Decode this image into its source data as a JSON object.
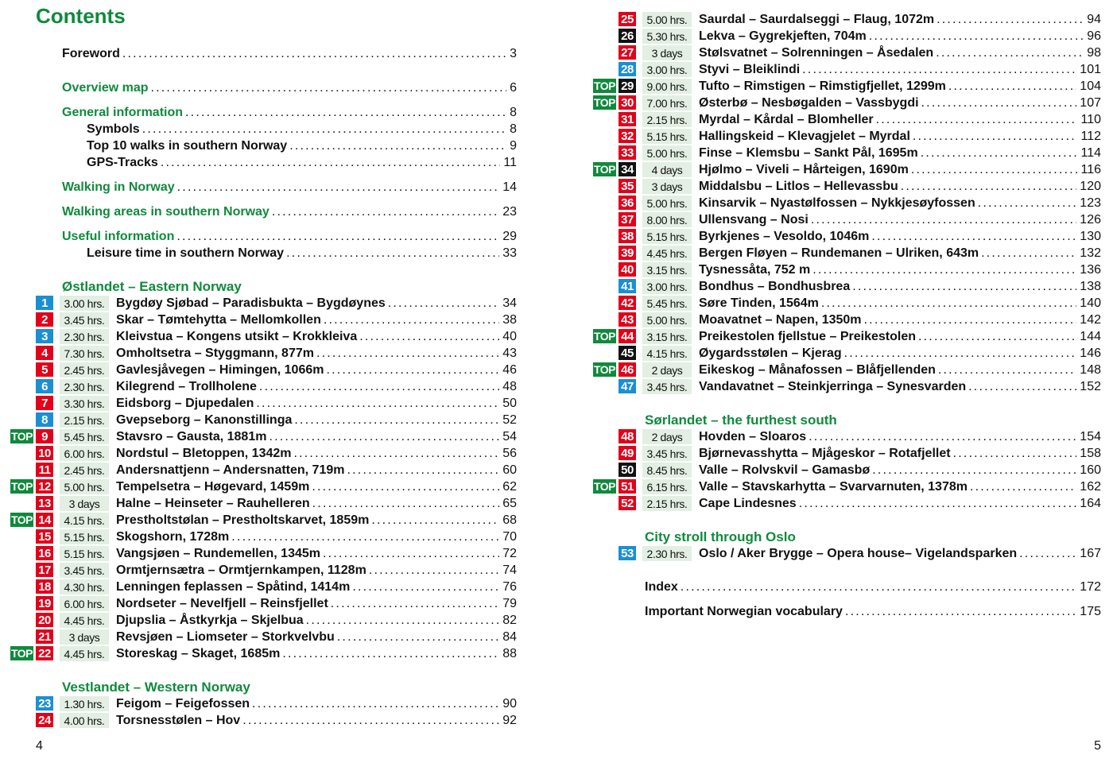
{
  "contents_title": "Contents",
  "colors": {
    "green": "#0f8a3c",
    "blue": "#1a8fd4",
    "red": "#e2001a",
    "black": "#111111",
    "time_bg": "#e2efe2"
  },
  "top_label": "TOP",
  "left_page": {
    "folio": "4",
    "items": [
      {
        "kind": "main",
        "color": "black",
        "title": "Foreword",
        "page": "3"
      },
      {
        "kind": "main",
        "color": "green",
        "title": "Overview map",
        "page": "6"
      },
      {
        "kind": "main",
        "color": "green",
        "title": "General information",
        "page": "8"
      },
      {
        "kind": "sub",
        "title": "Symbols",
        "page": "8"
      },
      {
        "kind": "sub",
        "title": "Top 10 walks in southern Norway",
        "page": "9"
      },
      {
        "kind": "sub",
        "title": "GPS-Tracks",
        "page": "11"
      },
      {
        "kind": "main",
        "color": "green",
        "title": "Walking in Norway",
        "page": "14"
      },
      {
        "kind": "main",
        "color": "green",
        "title": "Walking areas in southern Norway",
        "page": "23"
      },
      {
        "kind": "main",
        "color": "green",
        "title": "Useful information",
        "page": "29"
      },
      {
        "kind": "sub",
        "title": "Leisure time in southern Norway",
        "page": "33"
      },
      {
        "kind": "section",
        "title": "Østlandet – Eastern Norway"
      },
      {
        "kind": "entry",
        "num": "1",
        "badge": "blue",
        "time": "3.00 hrs.",
        "title": "Bygdøy Sjøbad – Paradisbukta – Bygdøynes",
        "page": "34"
      },
      {
        "kind": "entry",
        "num": "2",
        "badge": "red",
        "time": "3.45 hrs.",
        "title": "Skar – Tømtehytta – Mellomkollen",
        "page": "38"
      },
      {
        "kind": "entry",
        "num": "3",
        "badge": "blue",
        "time": "2.30 hrs.",
        "title": "Kleivstua – Kongens utsikt – Krokkleiva",
        "page": "40"
      },
      {
        "kind": "entry",
        "num": "4",
        "badge": "red",
        "time": "7.30 hrs.",
        "title": "Omholtsetra – Styggmann, 877m",
        "page": "43"
      },
      {
        "kind": "entry",
        "num": "5",
        "badge": "red",
        "time": "2.45 hrs.",
        "title": "Gavlesjåvegen – Himingen, 1066m",
        "page": "46"
      },
      {
        "kind": "entry",
        "num": "6",
        "badge": "blue",
        "time": "2.30 hrs.",
        "title": "Kilegrend – Trollholene",
        "page": "48"
      },
      {
        "kind": "entry",
        "num": "7",
        "badge": "red",
        "time": "3.30 hrs.",
        "title": "Eidsborg – Djupedalen",
        "page": "50"
      },
      {
        "kind": "entry",
        "num": "8",
        "badge": "blue",
        "time": "2.15 hrs.",
        "title": "Gvepseborg – Kanonstillinga",
        "page": "52"
      },
      {
        "kind": "entry",
        "num": "9",
        "badge": "red",
        "top": true,
        "time": "5.45 hrs.",
        "title": "Stavsro – Gausta, 1881m",
        "page": "54"
      },
      {
        "kind": "entry",
        "num": "10",
        "badge": "red",
        "time": "6.00 hrs.",
        "title": "Nordstul – Bletoppen, 1342m",
        "page": "56"
      },
      {
        "kind": "entry",
        "num": "11",
        "badge": "red",
        "time": "2.45 hrs.",
        "title": "Andersnattjenn – Andersnatten, 719m",
        "page": "60"
      },
      {
        "kind": "entry",
        "num": "12",
        "badge": "red",
        "top": true,
        "time": "5.00 hrs.",
        "title": "Tempelsetra – Høgevard, 1459m",
        "page": "62"
      },
      {
        "kind": "entry",
        "num": "13",
        "badge": "red",
        "time": "3 days",
        "title": "Halne – Heinseter – Rauhelleren",
        "page": "65"
      },
      {
        "kind": "entry",
        "num": "14",
        "badge": "red",
        "top": true,
        "time": "4.15 hrs.",
        "title": "Prestholtstølan – Prestholtskarvet, 1859m",
        "page": "68"
      },
      {
        "kind": "entry",
        "num": "15",
        "badge": "red",
        "time": "5.15 hrs.",
        "title": "Skogshorn, 1728m",
        "page": "70"
      },
      {
        "kind": "entry",
        "num": "16",
        "badge": "red",
        "time": "5.15 hrs.",
        "title": "Vangsjøen – Rundemellen, 1345m",
        "page": "72"
      },
      {
        "kind": "entry",
        "num": "17",
        "badge": "red",
        "time": "3.45 hrs.",
        "title": "Ormtjernsætra – Ormtjernkampen, 1128m",
        "page": "74"
      },
      {
        "kind": "entry",
        "num": "18",
        "badge": "red",
        "time": "4.30 hrs.",
        "title": "Lenningen feplassen – Spåtind, 1414m",
        "page": "76"
      },
      {
        "kind": "entry",
        "num": "19",
        "badge": "red",
        "time": "6.00 hrs.",
        "title": "Nordseter – Nevelfjell – Reinsfjellet",
        "page": "79"
      },
      {
        "kind": "entry",
        "num": "20",
        "badge": "red",
        "time": "4.45 hrs.",
        "title": "Djupslia – Åstkyrkja – Skjelbua",
        "page": "82"
      },
      {
        "kind": "entry",
        "num": "21",
        "badge": "red",
        "time": "3 days",
        "title": "Revsjøen – Liomseter – Storkvelvbu",
        "page": "84"
      },
      {
        "kind": "entry",
        "num": "22",
        "badge": "red",
        "top": true,
        "time": "4.45 hrs.",
        "title": "Storeskag – Skaget, 1685m",
        "page": "88"
      },
      {
        "kind": "section",
        "title": "Vestlandet – Western Norway"
      },
      {
        "kind": "entry",
        "num": "23",
        "badge": "blue",
        "time": "1.30 hrs.",
        "title": "Feigom – Feigefossen",
        "page": "90"
      },
      {
        "kind": "entry",
        "num": "24",
        "badge": "red",
        "time": "4.00 hrs.",
        "title": "Torsnesstølen – Hov",
        "page": "92"
      }
    ]
  },
  "right_page": {
    "folio": "5",
    "items": [
      {
        "kind": "entry",
        "num": "25",
        "badge": "red",
        "time": "5.00 hrs.",
        "title": "Saurdal – Saurdalseggi – Flaug, 1072m",
        "page": "94"
      },
      {
        "kind": "entry",
        "num": "26",
        "badge": "black",
        "time": "5.30 hrs.",
        "title": "Lekva – Gygrekjeften, 704m",
        "page": "96"
      },
      {
        "kind": "entry",
        "num": "27",
        "badge": "red",
        "time": "3 days",
        "title": "Stølsvatnet – Solrenningen – Åsedalen",
        "page": "98"
      },
      {
        "kind": "entry",
        "num": "28",
        "badge": "blue",
        "time": "3.00 hrs.",
        "title": "Styvi – Bleiklindi",
        "page": "101"
      },
      {
        "kind": "entry",
        "num": "29",
        "badge": "black",
        "top": true,
        "time": "9.00 hrs.",
        "title": "Tufto – Rimstigen – Rimstigfjellet, 1299m",
        "page": "104"
      },
      {
        "kind": "entry",
        "num": "30",
        "badge": "red",
        "top": true,
        "time": "7.00 hrs.",
        "title": "Østerbø – Nesbøgalden – Vassbygdi",
        "page": "107"
      },
      {
        "kind": "entry",
        "num": "31",
        "badge": "red",
        "time": "2.15 hrs.",
        "title": "Myrdal – Kårdal – Blomheller",
        "page": "110"
      },
      {
        "kind": "entry",
        "num": "32",
        "badge": "red",
        "time": "5.15 hrs.",
        "title": "Hallingskeid – Klevagjelet – Myrdal",
        "page": "112"
      },
      {
        "kind": "entry",
        "num": "33",
        "badge": "red",
        "time": "5.00 hrs.",
        "title": "Finse – Klemsbu – Sankt Pål, 1695m",
        "page": "114"
      },
      {
        "kind": "entry",
        "num": "34",
        "badge": "black",
        "top": true,
        "time": "4 days",
        "title": "Hjølmo – Viveli – Hårteigen, 1690m",
        "page": "116"
      },
      {
        "kind": "entry",
        "num": "35",
        "badge": "red",
        "time": "3 days",
        "title": "Middalsbu – Litlos – Hellevassbu",
        "page": "120"
      },
      {
        "kind": "entry",
        "num": "36",
        "badge": "red",
        "time": "5.00 hrs.",
        "title": "Kinsarvik – Nyastølfossen – Nykkjesøyfossen",
        "page": "123"
      },
      {
        "kind": "entry",
        "num": "37",
        "badge": "red",
        "time": "8.00 hrs.",
        "title": "Ullensvang – Nosi",
        "page": "126"
      },
      {
        "kind": "entry",
        "num": "38",
        "badge": "red",
        "time": "5.15 hrs.",
        "title": "Byrkjenes – Vesoldo, 1046m",
        "page": "130"
      },
      {
        "kind": "entry",
        "num": "39",
        "badge": "red",
        "time": "4.45 hrs.",
        "title": "Bergen Fløyen – Rundemanen – Ulriken, 643m",
        "page": "132"
      },
      {
        "kind": "entry",
        "num": "40",
        "badge": "red",
        "time": "3.15 hrs.",
        "title": "Tysnessåta, 752 m",
        "page": "136"
      },
      {
        "kind": "entry",
        "num": "41",
        "badge": "blue",
        "time": "3.00 hrs.",
        "title": "Bondhus – Bondhusbrea",
        "page": "138"
      },
      {
        "kind": "entry",
        "num": "42",
        "badge": "red",
        "time": "5.45 hrs.",
        "title": "Søre Tinden, 1564m",
        "page": "140"
      },
      {
        "kind": "entry",
        "num": "43",
        "badge": "red",
        "time": "5.00 hrs.",
        "title": "Moavatnet – Napen, 1350m",
        "page": "142"
      },
      {
        "kind": "entry",
        "num": "44",
        "badge": "red",
        "top": true,
        "time": "3.15 hrs.",
        "title": "Preikestolen fjellstue – Preikestolen",
        "page": "144"
      },
      {
        "kind": "entry",
        "num": "45",
        "badge": "black",
        "time": "4.15 hrs.",
        "title": "Øygardsstølen – Kjerag",
        "page": "146"
      },
      {
        "kind": "entry",
        "num": "46",
        "badge": "red",
        "top": true,
        "time": "2 days",
        "title": "Eikeskog – Månafossen – Blåfjellenden",
        "page": "148"
      },
      {
        "kind": "entry",
        "num": "47",
        "badge": "blue",
        "time": "3.45 hrs.",
        "title": "Vandavatnet – Steinkjerringa – Synesvarden",
        "page": "152"
      },
      {
        "kind": "section",
        "title": "Sørlandet – the furthest south"
      },
      {
        "kind": "entry",
        "num": "48",
        "badge": "red",
        "time": "2 days",
        "title": "Hovden – Sloaros",
        "page": "154"
      },
      {
        "kind": "entry",
        "num": "49",
        "badge": "red",
        "time": "3.45 hrs.",
        "title": "Bjørnevasshytta – Mjågeskor – Rotafjellet",
        "page": "158"
      },
      {
        "kind": "entry",
        "num": "50",
        "badge": "black",
        "time": "8.45 hrs.",
        "title": "Valle – Rolvskvil – Gamasbø",
        "page": "160"
      },
      {
        "kind": "entry",
        "num": "51",
        "badge": "red",
        "top": true,
        "time": "6.15 hrs.",
        "title": "Valle – Stavskarhytta – Svarvarnuten, 1378m",
        "page": "162"
      },
      {
        "kind": "entry",
        "num": "52",
        "badge": "red",
        "time": "2.15 hrs.",
        "title": "Cape Lindesnes",
        "page": "164"
      },
      {
        "kind": "section",
        "title": "City stroll through Oslo"
      },
      {
        "kind": "entry",
        "num": "53",
        "badge": "blue",
        "time": "2.30 hrs.",
        "title": "Oslo / Aker Brygge – Opera house–  Vigelandsparken",
        "page": "167"
      },
      {
        "kind": "main",
        "color": "black",
        "title": "Index",
        "page": "172"
      },
      {
        "kind": "main",
        "color": "black",
        "title": "Important Norwegian vocabulary",
        "page": "175"
      }
    ]
  }
}
